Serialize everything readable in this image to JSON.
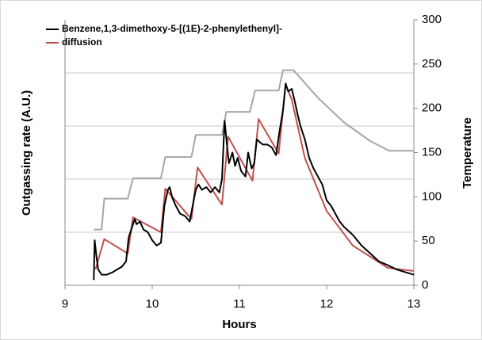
{
  "chart_data": {
    "type": "line",
    "xlabel": "Hours",
    "ylabel": "Outgassing rate (A.U.)",
    "y2label": "Temperature",
    "xlim": [
      9,
      13
    ],
    "xticks": [
      9,
      10,
      11,
      12,
      13
    ],
    "ylim": [
      0,
      5
    ],
    "ygrid": [
      1,
      2,
      3,
      4
    ],
    "y2lim": [
      0,
      300
    ],
    "y2ticks": [
      0,
      50,
      100,
      150,
      200,
      250,
      300
    ],
    "grid": true,
    "legend": "upper left",
    "series": [
      {
        "name": "Benzene,1,3-dimethoxy-5-[(1E)-2-phenylethenyl]-",
        "color": "#000000",
        "x": [
          9.33,
          9.34,
          9.36,
          9.38,
          9.42,
          9.48,
          9.55,
          9.6,
          9.65,
          9.7,
          9.73,
          9.76,
          9.8,
          9.82,
          9.86,
          9.9,
          9.95,
          10.0,
          10.05,
          10.1,
          10.14,
          10.18,
          10.2,
          10.23,
          10.27,
          10.32,
          10.38,
          10.43,
          10.47,
          10.5,
          10.53,
          10.57,
          10.62,
          10.67,
          10.72,
          10.77,
          10.8,
          10.83,
          10.86,
          10.88,
          10.92,
          10.95,
          10.98,
          11.02,
          11.07,
          11.1,
          11.14,
          11.17,
          11.2,
          11.23,
          11.27,
          11.32,
          11.37,
          11.42,
          11.46,
          11.5,
          11.53,
          11.56,
          11.6,
          11.63,
          11.67,
          11.7,
          11.75,
          11.8,
          11.85,
          11.9,
          11.95,
          12.0,
          12.05,
          12.1,
          12.15,
          12.2,
          12.3,
          12.4,
          12.5,
          12.6,
          12.7,
          12.8,
          12.9,
          13.0
        ],
        "values": [
          0.1,
          0.85,
          0.55,
          0.3,
          0.2,
          0.2,
          0.25,
          0.3,
          0.35,
          0.45,
          0.9,
          1.05,
          1.25,
          1.15,
          1.2,
          1.05,
          1.0,
          0.85,
          0.75,
          0.8,
          1.5,
          1.8,
          1.85,
          1.65,
          1.5,
          1.35,
          1.3,
          1.2,
          1.55,
          1.8,
          1.9,
          1.8,
          1.85,
          1.75,
          1.85,
          1.75,
          2.0,
          3.1,
          2.6,
          2.3,
          2.5,
          2.25,
          2.4,
          2.15,
          2.05,
          2.5,
          2.2,
          2.3,
          2.75,
          2.7,
          2.65,
          2.65,
          2.6,
          2.45,
          2.9,
          3.3,
          3.8,
          3.65,
          3.7,
          3.5,
          3.2,
          3.0,
          2.75,
          2.4,
          2.2,
          2.05,
          1.9,
          1.6,
          1.5,
          1.35,
          1.2,
          1.1,
          0.95,
          0.75,
          0.6,
          0.45,
          0.38,
          0.3,
          0.25,
          0.2
        ]
      },
      {
        "name": "diffusion",
        "color": "#c0504d",
        "x": [
          9.35,
          9.45,
          9.72,
          9.78,
          10.1,
          10.15,
          10.45,
          10.52,
          10.8,
          10.87,
          11.15,
          11.22,
          11.45,
          11.53,
          11.6,
          11.75,
          12.0,
          12.3,
          12.7,
          13.0
        ],
        "values": [
          0.3,
          0.87,
          0.6,
          1.28,
          1.0,
          1.82,
          1.25,
          2.22,
          1.52,
          2.8,
          1.97,
          3.13,
          2.48,
          3.78,
          3.5,
          2.4,
          1.4,
          0.75,
          0.33,
          0.27
        ]
      }
    ],
    "temperature": {
      "color": "#a6a6a6",
      "axis": "y2",
      "x": [
        9.33,
        9.42,
        9.45,
        9.72,
        9.78,
        10.1,
        10.15,
        10.45,
        10.5,
        10.8,
        10.85,
        11.12,
        11.18,
        11.45,
        11.5,
        11.62,
        11.9,
        12.2,
        12.5,
        12.72,
        13.0
      ],
      "values": [
        63,
        63,
        98,
        98,
        121,
        121,
        145,
        145,
        170,
        170,
        196,
        196,
        220,
        220,
        243,
        243,
        212,
        184,
        163,
        152,
        152
      ]
    }
  }
}
